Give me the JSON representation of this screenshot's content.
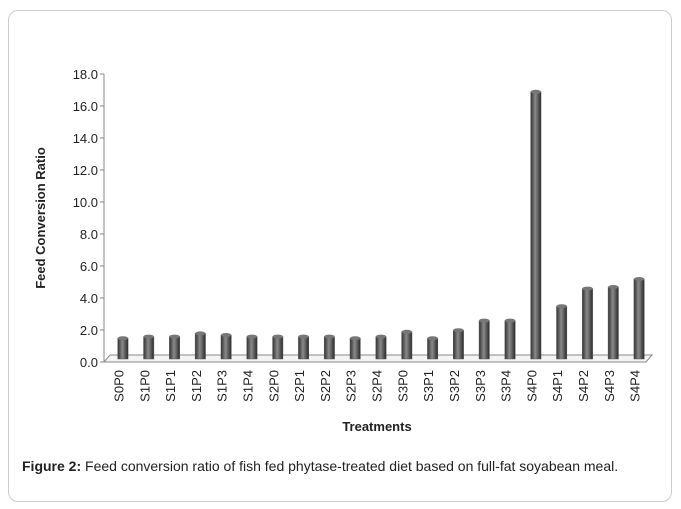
{
  "chart_data": {
    "type": "bar",
    "y_label": "Feed Conversion Ratio",
    "x_label": "Treatments",
    "categories": [
      "S0P0",
      "S1P0",
      "S1P1",
      "S1P2",
      "S1P3",
      "S1P4",
      "S2P0",
      "S2P1",
      "S2P2",
      "S2P3",
      "S2P4",
      "S3P0",
      "S3P1",
      "S3P2",
      "S3P3",
      "S3P4",
      "S4P0",
      "S4P1",
      "S4P2",
      "S4P3",
      "S4P4"
    ],
    "values": [
      1.3,
      1.4,
      1.4,
      1.6,
      1.5,
      1.4,
      1.4,
      1.4,
      1.4,
      1.3,
      1.4,
      1.7,
      1.3,
      1.8,
      2.4,
      2.4,
      16.7,
      3.3,
      4.4,
      4.5,
      5.0
    ],
    "color": "#555555",
    "ylim": [
      0,
      18
    ],
    "yticks": [
      {
        "value": 0,
        "label": "0.0"
      },
      {
        "value": 2,
        "label": "2.0"
      },
      {
        "value": 4,
        "label": "4.0"
      },
      {
        "value": 6,
        "label": "6.0"
      },
      {
        "value": 8,
        "label": "8.0"
      },
      {
        "value": 10,
        "label": "10.0"
      },
      {
        "value": 12,
        "label": "12.0"
      },
      {
        "value": 14,
        "label": "14.0"
      },
      {
        "value": 16,
        "label": "16.0"
      },
      {
        "value": 18,
        "label": "18.0"
      }
    ],
    "grid": false
  },
  "caption": {
    "label": "Figure 2:",
    "text": " Feed conversion ratio of fish fed phytase-treated diet based on full-fat soyabean meal."
  }
}
